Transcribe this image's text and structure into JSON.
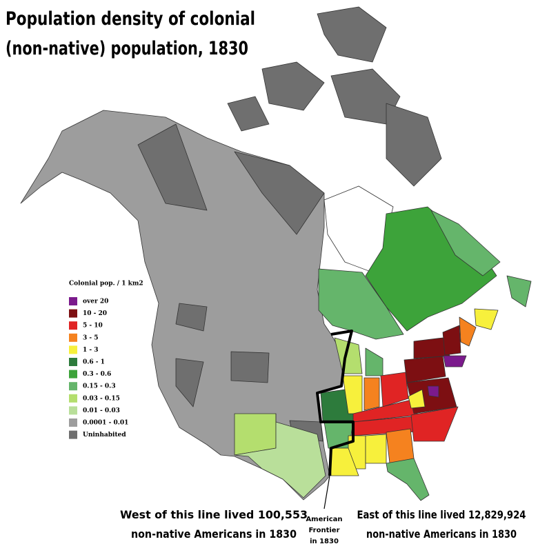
{
  "title": [
    "Population density of colonial",
    "(non-native) population, 1830"
  ],
  "legend": {
    "title": "Colonial pop. / 1 km2",
    "items": [
      {
        "label": "over 20",
        "color": "#7b1a8c"
      },
      {
        "label": "10 - 20",
        "color": "#7d0f12"
      },
      {
        "label": "5 - 10",
        "color": "#e02424"
      },
      {
        "label": "3 - 5",
        "color": "#f5821f"
      },
      {
        "label": "1 - 3",
        "color": "#f7f03c"
      },
      {
        "label": "0.6 - 1",
        "color": "#2d7b3c"
      },
      {
        "label": "0.3 - 0.6",
        "color": "#3da33a"
      },
      {
        "label": "0.15 - 0.3",
        "color": "#65b56b"
      },
      {
        "label": "0.03 - 0.15",
        "color": "#b4de6e"
      },
      {
        "label": "0.01 - 0.03",
        "color": "#b9df9a"
      },
      {
        "label": "0.0001 - 0.01",
        "color": "#9d9d9d"
      },
      {
        "label": "Uninhabited",
        "color": "#6f6f6f"
      }
    ]
  },
  "annotations": {
    "west": [
      "West of this line lived 100,553",
      "non-native Americans in 1830"
    ],
    "frontier": [
      "American",
      "Frontier",
      "in 1830"
    ],
    "east": [
      "East of this line lived 12,829,924",
      "non-native Americans in 1830"
    ]
  }
}
